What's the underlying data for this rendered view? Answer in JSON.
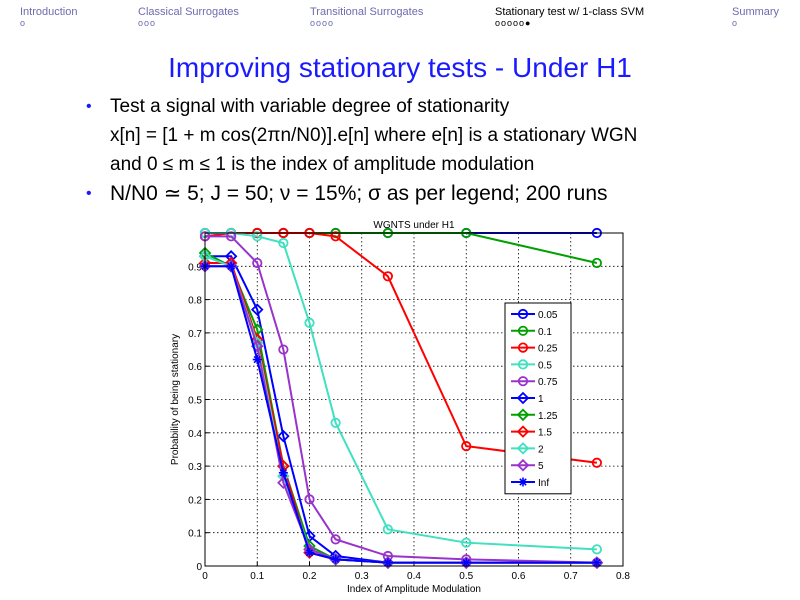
{
  "nav": [
    {
      "label": "Introduction",
      "dots": "o"
    },
    {
      "label": "Classical Surrogates",
      "dots": "ooo"
    },
    {
      "label": "Transitional Surrogates",
      "dots": "oooo"
    },
    {
      "label": "Stationary test w/ 1-class SVM",
      "dots": "ooooo●"
    },
    {
      "label": "Summary",
      "dots": "o"
    }
  ],
  "slide": {
    "title": "Improving stationary tests - Under H1",
    "bullet1": "Test a signal with variable degree of stationarity",
    "bullet1_line2": "x[n] = [1 + m cos(2πn/N0)].e[n] where e[n] is a stationary WGN",
    "bullet1_line3": "and 0 ≤ m ≤ 1 is the index of amplitude modulation",
    "bullet2": "N/N0 ≃ 5; J = 50; ν = 15%; σ as per legend; 200 runs"
  },
  "chart_data": {
    "type": "line",
    "title": "WGNTS under H1",
    "xlabel": "Index of Amplitude Modulation",
    "ylabel": "Probability of being stationary",
    "xlim": [
      0,
      0.8
    ],
    "ylim": [
      0,
      1
    ],
    "xticks": [
      "0",
      "0.1",
      "0.2",
      "0.3",
      "0.4",
      "0.5",
      "0.6",
      "0.7",
      "0.8"
    ],
    "yticks": [
      "0",
      "0.1",
      "0.2",
      "0.3",
      "0.4",
      "0.5",
      "0.6",
      "0.7",
      "0.8",
      "0.9"
    ],
    "grid": true,
    "legend_position": "right",
    "x": [
      0,
      0.05,
      0.1,
      0.15,
      0.2,
      0.25,
      0.35,
      0.5,
      0.75
    ],
    "series": [
      {
        "name": "0.05",
        "color": "#0000ff",
        "marker": "o",
        "values": [
          1.0,
          1.0,
          1.0,
          1.0,
          1.0,
          1.0,
          1.0,
          1.0,
          1.0
        ]
      },
      {
        "name": "0.1",
        "color": "#00a000",
        "marker": "o",
        "values": [
          1.0,
          1.0,
          1.0,
          1.0,
          1.0,
          1.0,
          1.0,
          1.0,
          0.91
        ]
      },
      {
        "name": "0.25",
        "color": "#ff0000",
        "marker": "o",
        "values": [
          0.99,
          1.0,
          1.0,
          1.0,
          1.0,
          0.99,
          0.87,
          0.36,
          0.31
        ]
      },
      {
        "name": "0.5",
        "color": "#40e0c0",
        "marker": "o",
        "values": [
          1.0,
          1.0,
          0.99,
          0.97,
          0.73,
          0.43,
          0.11,
          0.07,
          0.05
        ]
      },
      {
        "name": "0.75",
        "color": "#9933cc",
        "marker": "o",
        "values": [
          0.99,
          0.99,
          0.91,
          0.65,
          0.2,
          0.08,
          0.03,
          0.02,
          0.01
        ]
      },
      {
        "name": "1",
        "color": "#0000ff",
        "marker": "d",
        "values": [
          0.93,
          0.93,
          0.77,
          0.39,
          0.09,
          0.03,
          0.01,
          0.01,
          0.01
        ]
      },
      {
        "name": "1.25",
        "color": "#00a000",
        "marker": "d",
        "values": [
          0.94,
          0.9,
          0.71,
          0.3,
          0.06,
          0.02,
          0.01,
          0.01,
          0.01
        ]
      },
      {
        "name": "1.5",
        "color": "#ff0000",
        "marker": "d",
        "values": [
          0.91,
          0.91,
          0.68,
          0.3,
          0.04,
          0.02,
          0.01,
          0.01,
          0.01
        ]
      },
      {
        "name": "2",
        "color": "#40e0c0",
        "marker": "d",
        "values": [
          0.93,
          0.9,
          0.67,
          0.27,
          0.05,
          0.02,
          0.01,
          0.01,
          0.01
        ]
      },
      {
        "name": "5",
        "color": "#9933cc",
        "marker": "d",
        "values": [
          0.9,
          0.9,
          0.66,
          0.25,
          0.05,
          0.02,
          0.01,
          0.01,
          0.01
        ]
      },
      {
        "name": "Inf",
        "color": "#0000ff",
        "marker": "*",
        "values": [
          0.9,
          0.9,
          0.62,
          0.28,
          0.04,
          0.02,
          0.01,
          0.01,
          0.01
        ]
      }
    ]
  }
}
